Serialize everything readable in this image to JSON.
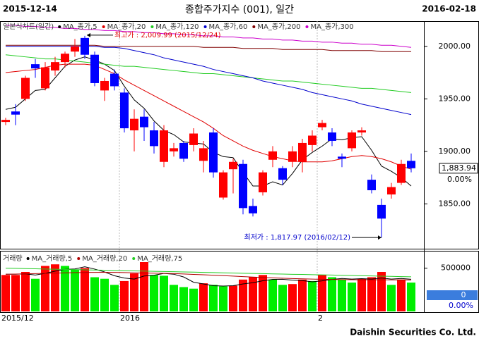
{
  "chart_data": [
    {
      "type": "candlestick",
      "title": "종합주가지수 (001), 일간",
      "start_label": "2015-12-14",
      "end_label": "2016-02-18",
      "legend_label": "일본식차트(일간)",
      "open": [
        1928,
        1938,
        1950,
        1983,
        1960,
        1977,
        1985,
        1995,
        2008,
        1992,
        1958,
        1974,
        1956,
        1920,
        1933,
        1920,
        1890,
        1900,
        1908,
        1906,
        1891,
        1918,
        1856,
        1883,
        1888,
        1848,
        1861,
        1892,
        1884,
        1890,
        1890,
        1906,
        1923,
        1918,
        1895,
        1903,
        1918,
        1873,
        1849,
        1859,
        1870,
        1891
      ],
      "high": [
        1932,
        1945,
        1972,
        1988,
        1985,
        1990,
        1995,
        2007,
        2009.99,
        1995,
        1970,
        1978,
        1960,
        1940,
        1940,
        1928,
        1925,
        1908,
        1910,
        1922,
        1910,
        1922,
        1882,
        1893,
        1892,
        1855,
        1882,
        1905,
        1886,
        1905,
        1912,
        1920,
        1930,
        1922,
        1898,
        1920,
        1923,
        1878,
        1855,
        1870,
        1892,
        1898
      ],
      "low": [
        1925,
        1925,
        1948,
        1970,
        1958,
        1972,
        1980,
        1990,
        1988,
        1962,
        1948,
        1958,
        1918,
        1900,
        1910,
        1898,
        1885,
        1895,
        1890,
        1900,
        1880,
        1875,
        1854,
        1860,
        1840,
        1838,
        1858,
        1885,
        1868,
        1885,
        1880,
        1900,
        1920,
        1905,
        1885,
        1900,
        1915,
        1860,
        1817.97,
        1855,
        1868,
        1880
      ],
      "close": [
        1930,
        1935,
        1970,
        1979,
        1980,
        1985,
        1993,
        2000,
        1992,
        1965,
        1967,
        1962,
        1922,
        1931,
        1923,
        1905,
        1920,
        1903,
        1893,
        1917,
        1903,
        1880,
        1880,
        1890,
        1846,
        1841,
        1880,
        1900,
        1873,
        1900,
        1908,
        1915,
        1927,
        1910,
        1893,
        1918,
        1920,
        1863,
        1836,
        1866,
        1888,
        1883.94
      ],
      "up_color": "#ff0000",
      "down_color": "#0000ff",
      "ylim": [
        1808,
        2024
      ],
      "yticks": [
        {
          "value": 2000,
          "label": "2000.00"
        },
        {
          "value": 1950,
          "label": "1950.00"
        },
        {
          "value": 1900,
          "label": "1900.00"
        },
        {
          "value": 1850,
          "label": "1850.00"
        }
      ],
      "high_label": "최고가 : 2,009.99 (2015/12/24)",
      "low_label": "최저가 : 1,817.97 (2016/02/12)",
      "last_label": "1,883.94",
      "change_label": "0.00%",
      "series": [
        {
          "name": "MA_종가,5",
          "color": "#000000",
          "values": [
            1940,
            1942,
            1950,
            1958,
            1959,
            1970,
            1981,
            1987,
            1990,
            1987,
            1983,
            1977,
            1962,
            1949,
            1941,
            1929,
            1920,
            1916,
            1909,
            1908,
            1907,
            1899,
            1895,
            1894,
            1880,
            1867,
            1867,
            1871,
            1868,
            1879,
            1892,
            1899,
            1905,
            1912,
            1911,
            1913,
            1914,
            1901,
            1886,
            1881,
            1875,
            1867
          ]
        },
        {
          "name": "MA_종가,20",
          "color": "#e00000",
          "values": [
            1975,
            1976,
            1977,
            1978,
            1980,
            1982,
            1983,
            1983,
            1983,
            1982,
            1978,
            1974,
            1968,
            1963,
            1958,
            1953,
            1948,
            1943,
            1938,
            1933,
            1928,
            1922,
            1915,
            1910,
            1905,
            1901,
            1898,
            1895,
            1893,
            1891,
            1890,
            1890,
            1890,
            1891,
            1893,
            1895,
            1896,
            1895,
            1893,
            1890,
            1886,
            1883
          ]
        },
        {
          "name": "MA_종가,120",
          "color": "#22cc22",
          "values": [
            1992,
            1991,
            1990,
            1989,
            1988,
            1988,
            1987,
            1986,
            1985,
            1984,
            1983,
            1982,
            1981,
            1981,
            1980,
            1979,
            1978,
            1977,
            1976,
            1975,
            1974,
            1974,
            1973,
            1972,
            1971,
            1970,
            1969,
            1968,
            1967,
            1967,
            1966,
            1965,
            1964,
            1963,
            1962,
            1961,
            1960,
            1960,
            1959,
            1958,
            1957,
            1956
          ]
        },
        {
          "name": "MA_종가,60",
          "color": "#0000cc",
          "values": [
            2000,
            2000,
            2000,
            2000,
            2000,
            2000,
            2000,
            2000,
            2000,
            2000,
            1999,
            1999,
            1998,
            1996,
            1994,
            1992,
            1989,
            1987,
            1985,
            1983,
            1981,
            1978,
            1976,
            1974,
            1972,
            1970,
            1967,
            1965,
            1963,
            1961,
            1959,
            1956,
            1954,
            1952,
            1950,
            1948,
            1945,
            1943,
            1941,
            1939,
            1937,
            1935
          ]
        },
        {
          "name": "MA_종가,200",
          "color": "#800000",
          "values": [
            2001,
            2001,
            2001,
            2001,
            2001,
            2001,
            2001,
            2001,
            2001,
            2001,
            2000,
            2000,
            2000,
            2000,
            2000,
            2000,
            2000,
            2000,
            2000,
            2000,
            1999,
            1999,
            1999,
            1999,
            1998,
            1998,
            1998,
            1998,
            1997,
            1997,
            1997,
            1997,
            1997,
            1996,
            1996,
            1996,
            1996,
            1996,
            1995,
            1995,
            1995,
            1995
          ]
        },
        {
          "name": "MA_종가,300",
          "color": "#cc00cc",
          "values": [
            2020,
            2020,
            2019,
            2019,
            2018,
            2018,
            2017,
            2017,
            2016,
            2016,
            2015,
            2015,
            2014,
            2014,
            2013,
            2013,
            2012,
            2012,
            2011,
            2011,
            2010,
            2010,
            2009,
            2009,
            2008,
            2008,
            2007,
            2007,
            2006,
            2006,
            2005,
            2005,
            2004,
            2004,
            2003,
            2003,
            2002,
            2002,
            2001,
            2001,
            2000,
            1999
          ]
        }
      ]
    },
    {
      "type": "bar",
      "legend_label": "거래량",
      "categories": [
        "2015/12",
        null,
        null,
        null,
        null,
        null,
        null,
        null,
        null,
        null,
        null,
        null,
        "2016",
        null,
        null,
        null,
        null,
        null,
        null,
        null,
        null,
        null,
        null,
        null,
        null,
        null,
        null,
        null,
        null,
        null,
        null,
        null,
        "2",
        null,
        null,
        null,
        null,
        null,
        null,
        null,
        null,
        null
      ],
      "values": [
        421000,
        421000,
        456000,
        377000,
        526000,
        544000,
        526000,
        482000,
        500000,
        395000,
        377000,
        307000,
        351000,
        439000,
        570000,
        421000,
        412000,
        307000,
        281000,
        263000,
        325000,
        307000,
        290000,
        298000,
        368000,
        395000,
        421000,
        368000,
        307000,
        316000,
        368000,
        351000,
        421000,
        395000,
        368000,
        333000,
        377000,
        395000,
        456000,
        307000,
        368000,
        333000
      ],
      "up_color": "#ff0000",
      "down_color": "#00ee00",
      "ylim": [
        0,
        684000
      ],
      "yticks": [
        500000
      ],
      "current_label": "0",
      "change_label": "0.00%",
      "series": [
        {
          "name": "MA_거래량,5",
          "color": "#000000",
          "values": [
            430000,
            430000,
            435000,
            420000,
            440000,
            465000,
            486000,
            491000,
            516000,
            489000,
            456000,
            412000,
            386000,
            374000,
            409000,
            418000,
            439000,
            430000,
            398000,
            337000,
            318000,
            297000,
            293000,
            297000,
            318000,
            332000,
            354000,
            370000,
            372000,
            361000,
            356000,
            342000,
            353000,
            370000,
            381000,
            374000,
            379000,
            374000,
            386000,
            374000,
            381000,
            372000
          ]
        },
        {
          "name": "MA_거래량,20",
          "color": "#b00000",
          "values": [
            430000,
            432000,
            435000,
            437000,
            440000,
            443000,
            446000,
            448000,
            450000,
            451000,
            452000,
            451000,
            449000,
            446000,
            444000,
            442000,
            440000,
            437000,
            433000,
            428000,
            423000,
            418000,
            413000,
            408000,
            402000,
            397000,
            392000,
            388000,
            384000,
            380000,
            377000,
            374000,
            371000,
            369000,
            367000,
            366000,
            365000,
            365000,
            365000,
            364000,
            364000,
            363000
          ]
        },
        {
          "name": "MA_거래량,75",
          "color": "#22cc22",
          "values": [
            500000,
            498000,
            495000,
            493000,
            490000,
            488000,
            485000,
            483000,
            480000,
            478000,
            476000,
            473000,
            471000,
            468000,
            466000,
            463000,
            461000,
            459000,
            456000,
            454000,
            451000,
            449000,
            446000,
            444000,
            441000,
            439000,
            437000,
            434000,
            432000,
            429000,
            427000,
            424000,
            422000,
            420000,
            417000,
            415000,
            412000,
            410000,
            407000,
            405000,
            402000,
            400000
          ]
        }
      ]
    }
  ],
  "footer": "Daishin Securities Co. Ltd."
}
